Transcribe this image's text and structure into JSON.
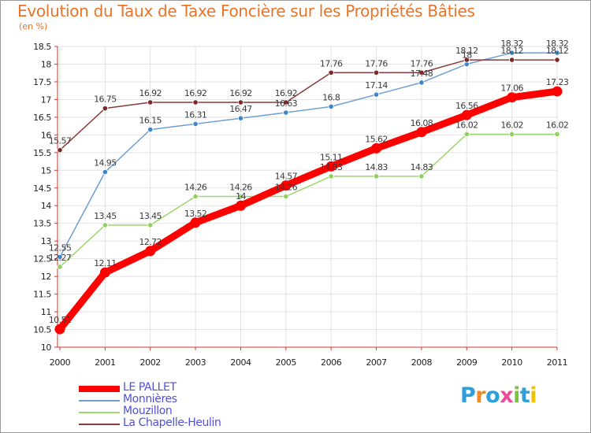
{
  "title": "Evolution du Taux de Taxe Foncière sur les Propriétés Bâties",
  "unit_label": "(en %)",
  "logo": {
    "text": "Proxiti"
  },
  "chart_data": {
    "type": "line",
    "title": "Evolution du Taux de Taxe Foncière sur les Propriétés Bâties",
    "xlabel": "",
    "ylabel": "(en %)",
    "ylim": [
      10,
      18.5
    ],
    "grid": true,
    "legend_position": "bottom-left",
    "x": [
      "2000",
      "2001",
      "2002",
      "2003",
      "2004",
      "2005",
      "2006",
      "2007",
      "2008",
      "2009",
      "2010",
      "2011"
    ],
    "y_ticks": [
      "10",
      "10.5",
      "11",
      "11.5",
      "12",
      "12.5",
      "13",
      "13.5",
      "14",
      "14.5",
      "15",
      "15.5",
      "16",
      "16.5",
      "17",
      "17.5",
      "18",
      "18.5"
    ],
    "series": [
      {
        "name": "LE PALLET",
        "color": "#ff0000",
        "style": "thick",
        "values": [
          10.51,
          12.11,
          12.72,
          13.52,
          14,
          14.57,
          15.11,
          15.62,
          16.08,
          16.56,
          17.06,
          17.23
        ],
        "labels": [
          "10.51",
          "12.11",
          "12.72",
          "13.52",
          "14",
          "14.57",
          "15.11",
          "15.62",
          "16.08",
          "16.56",
          "17.06",
          "17.23"
        ]
      },
      {
        "name": "Monnières",
        "color": "#6f9fd0",
        "marker": "#3d86c8",
        "values": [
          12.55,
          14.95,
          16.15,
          16.31,
          16.47,
          16.63,
          16.8,
          17.14,
          17.48,
          18,
          18.32,
          18.32
        ],
        "labels": [
          "12.55",
          "14.95",
          "16.15",
          "16.31",
          "16.47",
          "16.63",
          "16.8",
          "17.14",
          "17.48",
          "18",
          "18.32",
          "18.32"
        ]
      },
      {
        "name": "Mouzillon",
        "color": "#99d66c",
        "marker": "#8fd15e",
        "values": [
          12.27,
          13.45,
          13.45,
          14.26,
          14.26,
          14.26,
          14.83,
          14.83,
          14.83,
          16.02,
          16.02,
          16.02
        ],
        "labels": [
          "12.27",
          "13.45",
          "13.45",
          "14.26",
          "14.26",
          "14.26",
          "14.83",
          "14.83",
          "14.83",
          "16.02",
          "16.02",
          "16.02"
        ]
      },
      {
        "name": "La Chapelle-Heulin",
        "color": "#8b3a3a",
        "marker": "#7a2828",
        "values": [
          15.57,
          16.75,
          16.92,
          16.92,
          16.92,
          16.92,
          17.76,
          17.76,
          17.76,
          18.12,
          18.12,
          18.12
        ],
        "labels": [
          "15.57",
          "16.75",
          "16.92",
          "16.92",
          "16.92",
          "16.92",
          "17.76",
          "17.76",
          "17.76",
          "18.12",
          "18.12",
          "18.12"
        ]
      }
    ]
  }
}
